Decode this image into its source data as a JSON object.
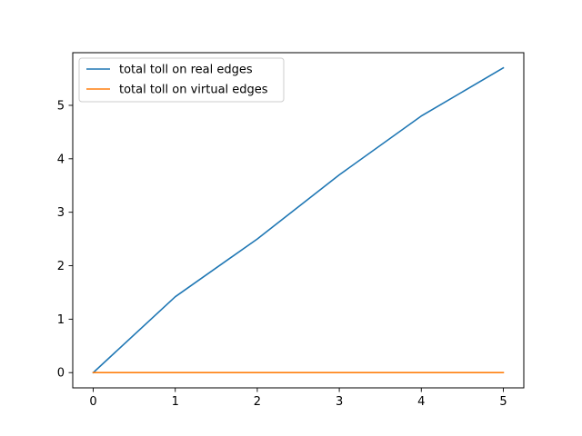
{
  "chart_data": {
    "type": "line",
    "title": "",
    "xlabel": "",
    "ylabel": "",
    "xlim": [
      -0.25,
      5.25
    ],
    "ylim": [
      -0.285,
      5.985
    ],
    "x_ticks": [
      0,
      1,
      2,
      3,
      4,
      5
    ],
    "y_ticks": [
      0,
      1,
      2,
      3,
      4,
      5
    ],
    "grid": false,
    "legend_position": "upper-left",
    "series": [
      {
        "name": "total toll on real edges",
        "color": "#1f77b4",
        "x": [
          0,
          1,
          2,
          3,
          4,
          5
        ],
        "y": [
          0,
          1.42,
          2.5,
          3.7,
          4.8,
          5.7
        ]
      },
      {
        "name": "total toll on virtual edges",
        "color": "#ff7f0e",
        "x": [
          0,
          1,
          2,
          3,
          4,
          5
        ],
        "y": [
          0,
          0,
          0,
          0,
          0,
          0
        ]
      }
    ]
  }
}
